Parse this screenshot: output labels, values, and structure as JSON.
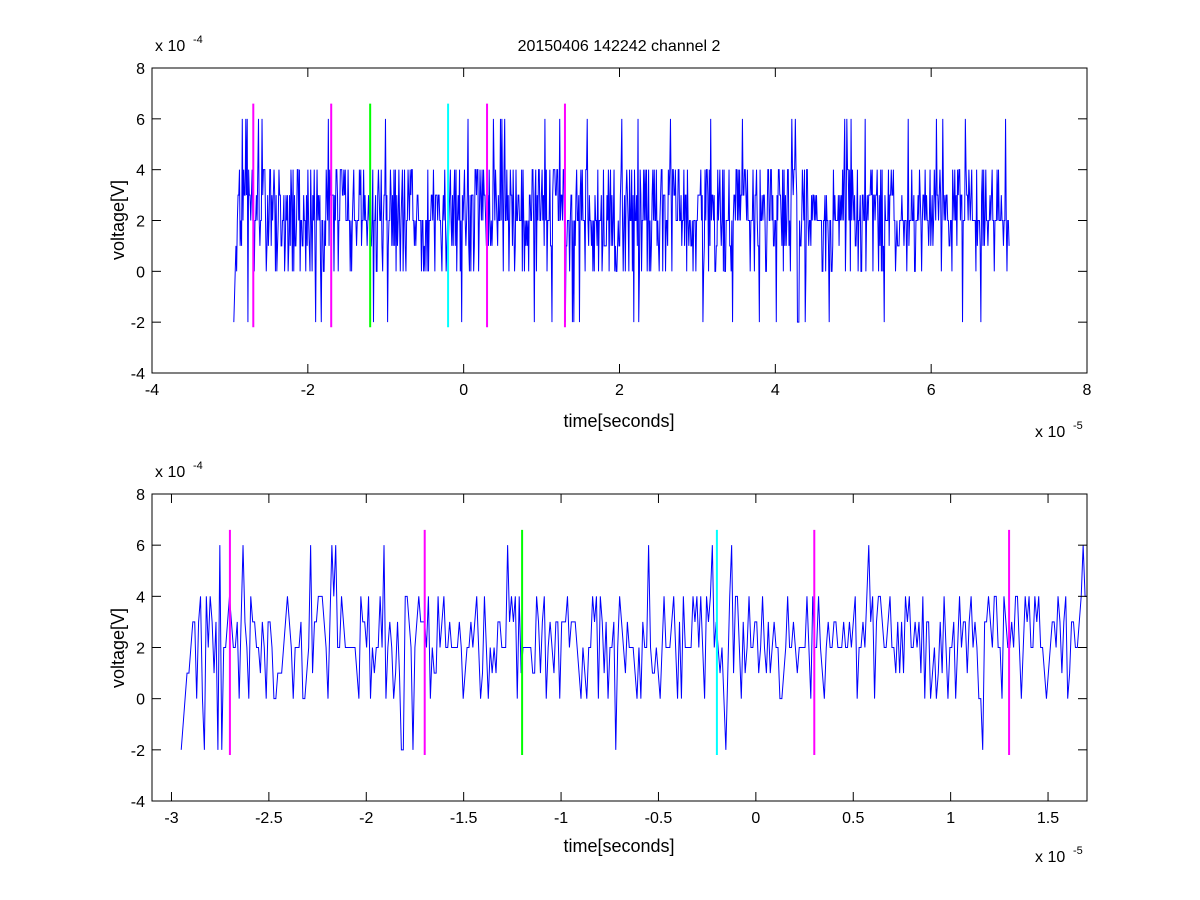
{
  "chart_data": [
    {
      "type": "line",
      "title": "20150406 142242 channel 2",
      "xlabel": "time[seconds]",
      "ylabel": "voltage[V]",
      "xlim": [
        -4e-05,
        8e-05
      ],
      "ylim": [
        -0.0004,
        0.0008
      ],
      "x_ticks": [
        -4e-05,
        -2e-05,
        0,
        2e-05,
        4e-05,
        6e-05,
        8e-05
      ],
      "x_tick_labels": [
        "-4",
        "-2",
        "0",
        "2",
        "4",
        "6",
        "8"
      ],
      "y_ticks": [
        -0.0004,
        -0.0002,
        0,
        0.0002,
        0.0004,
        0.0006,
        0.0008
      ],
      "y_tick_labels": [
        "-4",
        "-2",
        "0",
        "2",
        "4",
        "6",
        "8"
      ],
      "x_exponent": {
        "base": "x 10",
        "power": "-5"
      },
      "y_exponent": {
        "base": "x 10",
        "power": "-4"
      },
      "grid": false,
      "series": [
        {
          "color": "#0000ff",
          "x_start": -2.95e-05,
          "x_end": 7e-05,
          "samples": 1100,
          "y_min": -0.0002,
          "y_max": 0.0006,
          "baseline": 0.0002,
          "step": 0.0001
        }
      ],
      "markers": [
        {
          "x": -2.7e-05,
          "color": "#ff00ff",
          "y_range": [
            -0.00022,
            0.00066
          ]
        },
        {
          "x": -1.7e-05,
          "color": "#ff00ff",
          "y_range": [
            -0.00022,
            0.00066
          ]
        },
        {
          "x": -1.2e-05,
          "color": "#00ff00",
          "y_range": [
            -0.00022,
            0.00066
          ]
        },
        {
          "x": -2e-06,
          "color": "#00ffff",
          "y_range": [
            -0.00022,
            0.00066
          ]
        },
        {
          "x": 3e-06,
          "color": "#ff00ff",
          "y_range": [
            -0.00022,
            0.00066
          ]
        },
        {
          "x": 1.3e-05,
          "color": "#ff00ff",
          "y_range": [
            -0.00022,
            0.00066
          ]
        }
      ]
    },
    {
      "type": "line",
      "title": "",
      "xlabel": "time[seconds]",
      "ylabel": "voltage[V]",
      "xlim": [
        -3.1e-05,
        1.7e-05
      ],
      "ylim": [
        -0.0004,
        0.0008
      ],
      "x_ticks": [
        -3e-05,
        -2.5e-05,
        -2e-05,
        -1.5e-05,
        -1e-05,
        -5e-06,
        0,
        5e-06,
        1e-05,
        1.5e-05
      ],
      "x_tick_labels": [
        "-3",
        "-2.5",
        "-2",
        "-1.5",
        "-1",
        "-0.5",
        "0",
        "0.5",
        "1",
        "1.5"
      ],
      "y_ticks": [
        -0.0004,
        -0.0002,
        0,
        0.0002,
        0.0004,
        0.0006,
        0.0008
      ],
      "y_tick_labels": [
        "-4",
        "-2",
        "0",
        "2",
        "4",
        "6",
        "8"
      ],
      "x_exponent": {
        "base": "x 10",
        "power": "-5"
      },
      "y_exponent": {
        "base": "x 10",
        "power": "-4"
      },
      "grid": false,
      "series": [
        {
          "color": "#0000ff",
          "x_start": -2.95e-05,
          "x_end": 1.7e-05,
          "samples": 470,
          "y_min": -0.0002,
          "y_max": 0.0006,
          "baseline": 0.0002,
          "step": 0.0001
        }
      ],
      "markers": [
        {
          "x": -2.7e-05,
          "color": "#ff00ff",
          "y_range": [
            -0.00022,
            0.00066
          ]
        },
        {
          "x": -1.7e-05,
          "color": "#ff00ff",
          "y_range": [
            -0.00022,
            0.00066
          ]
        },
        {
          "x": -1.2e-05,
          "color": "#00ff00",
          "y_range": [
            -0.00022,
            0.00066
          ]
        },
        {
          "x": -2e-06,
          "color": "#00ffff",
          "y_range": [
            -0.00022,
            0.00066
          ]
        },
        {
          "x": 3e-06,
          "color": "#ff00ff",
          "y_range": [
            -0.00022,
            0.00066
          ]
        },
        {
          "x": 1.3e-05,
          "color": "#ff00ff",
          "y_range": [
            -0.00022,
            0.00066
          ]
        }
      ]
    }
  ]
}
